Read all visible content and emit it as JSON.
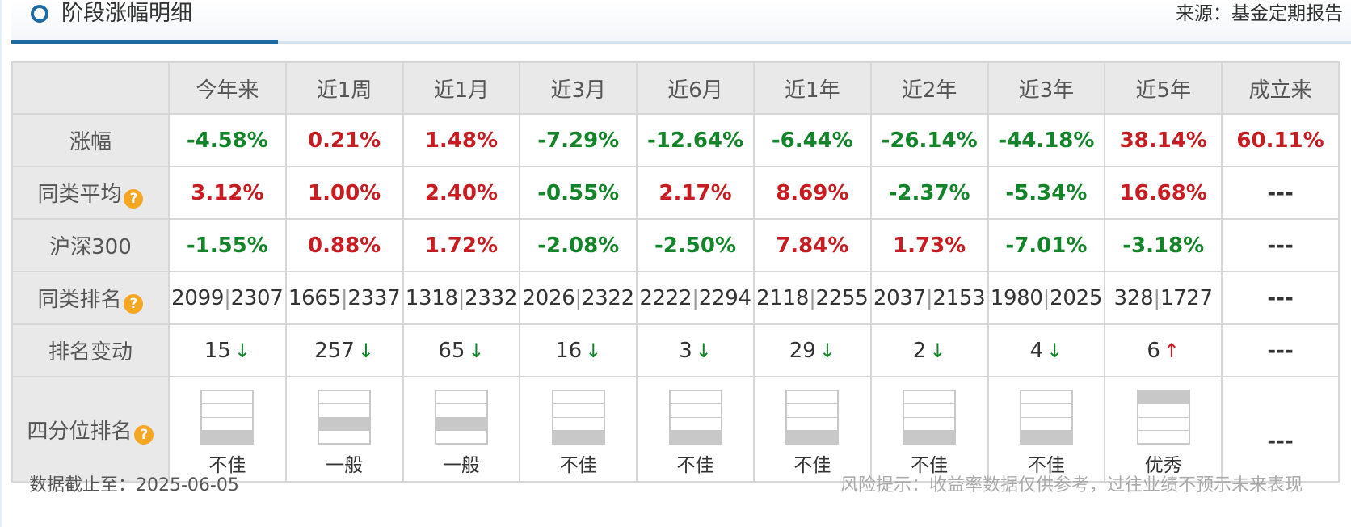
{
  "header": {
    "title": "阶段涨幅明细",
    "source": "来源：基金定期报告"
  },
  "columns": [
    "今年来",
    "近1周",
    "近1月",
    "近3月",
    "近6月",
    "近1年",
    "近2年",
    "近3年",
    "近5年",
    "成立来"
  ],
  "rows": {
    "gain": {
      "label": "涨幅",
      "values": [
        "-4.58%",
        "0.21%",
        "1.48%",
        "-7.29%",
        "-12.64%",
        "-6.44%",
        "-26.14%",
        "-44.18%",
        "38.14%",
        "60.11%"
      ],
      "signs": [
        "neg",
        "pos",
        "pos",
        "neg",
        "neg",
        "neg",
        "neg",
        "neg",
        "pos",
        "pos"
      ]
    },
    "peer_avg": {
      "label": "同类平均",
      "values": [
        "3.12%",
        "1.00%",
        "2.40%",
        "-0.55%",
        "2.17%",
        "8.69%",
        "-2.37%",
        "-5.34%",
        "16.68%",
        "---"
      ],
      "signs": [
        "pos",
        "pos",
        "pos",
        "neg",
        "pos",
        "pos",
        "neg",
        "neg",
        "pos",
        "dash"
      ]
    },
    "hs300": {
      "label": "沪深300",
      "values": [
        "-1.55%",
        "0.88%",
        "1.72%",
        "-2.08%",
        "-2.50%",
        "7.84%",
        "1.73%",
        "-7.01%",
        "-3.18%",
        "---"
      ],
      "signs": [
        "neg",
        "pos",
        "pos",
        "neg",
        "neg",
        "pos",
        "pos",
        "neg",
        "neg",
        "dash"
      ]
    },
    "peer_rank": {
      "label": "同类排名",
      "ranks": [
        [
          "2099",
          "2307"
        ],
        [
          "1665",
          "2337"
        ],
        [
          "1318",
          "2332"
        ],
        [
          "2026",
          "2322"
        ],
        [
          "2222",
          "2294"
        ],
        [
          "2118",
          "2255"
        ],
        [
          "2037",
          "2153"
        ],
        [
          "1980",
          "2025"
        ],
        [
          "328",
          "1727"
        ]
      ],
      "last": "---"
    },
    "rank_change": {
      "label": "排名变动",
      "values": [
        "15",
        "257",
        "65",
        "16",
        "3",
        "29",
        "2",
        "4",
        "6"
      ],
      "directions": [
        "down",
        "down",
        "down",
        "down",
        "down",
        "down",
        "down",
        "down",
        "up"
      ],
      "arrow_down": "↓",
      "arrow_up": "↑",
      "last": "---"
    },
    "quartile": {
      "label": "四分位排名",
      "filled_quartile": [
        4,
        3,
        3,
        4,
        4,
        4,
        4,
        4,
        1
      ],
      "labels": [
        "不佳",
        "一般",
        "一般",
        "不佳",
        "不佳",
        "不佳",
        "不佳",
        "不佳",
        "优秀"
      ],
      "last": "---"
    }
  },
  "help_icon_glyph": "?",
  "footer": {
    "date": "数据截止至：2025-06-05",
    "risk": "风险提示：收益率数据仅供参考，过往业绩不预示未来表现"
  },
  "colors": {
    "accent": "#1e6aa3",
    "negative": "#14842a",
    "positive": "#c71c22",
    "help_icon": "#f5a623"
  }
}
